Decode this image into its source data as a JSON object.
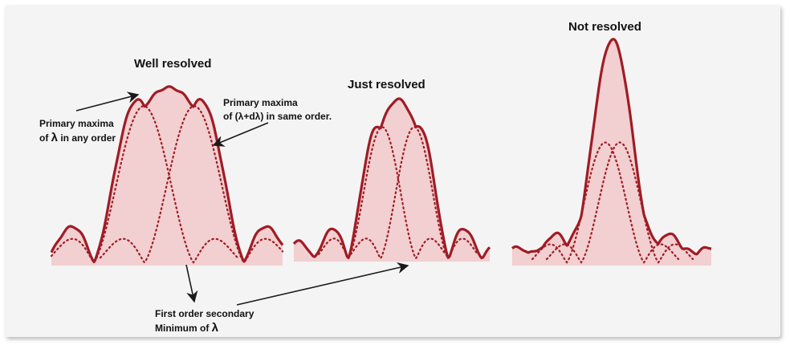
{
  "titles": {
    "well": "Well resolved",
    "just": "Just resolved",
    "not": "Not resolved"
  },
  "annotations": {
    "primary_lambda_line1": "Primary maxima",
    "primary_lambda_line2_prefix": "of ",
    "primary_lambda_symbol": "λ",
    "primary_lambda_line2_suffix": "  in any order",
    "primary_dlambda_line1": "Primary maxima",
    "primary_dlambda_line2": "of (λ+dλ) in same order.",
    "secondary_line1": "First order secondary",
    "secondary_line2_prefix": "Minimum of  ",
    "secondary_symbol": "λ"
  },
  "colors": {
    "curve": "#a01c25",
    "fill": "#f2cfd0",
    "frame": "#f4f4f4",
    "arrow": "#1a1a1a"
  }
}
